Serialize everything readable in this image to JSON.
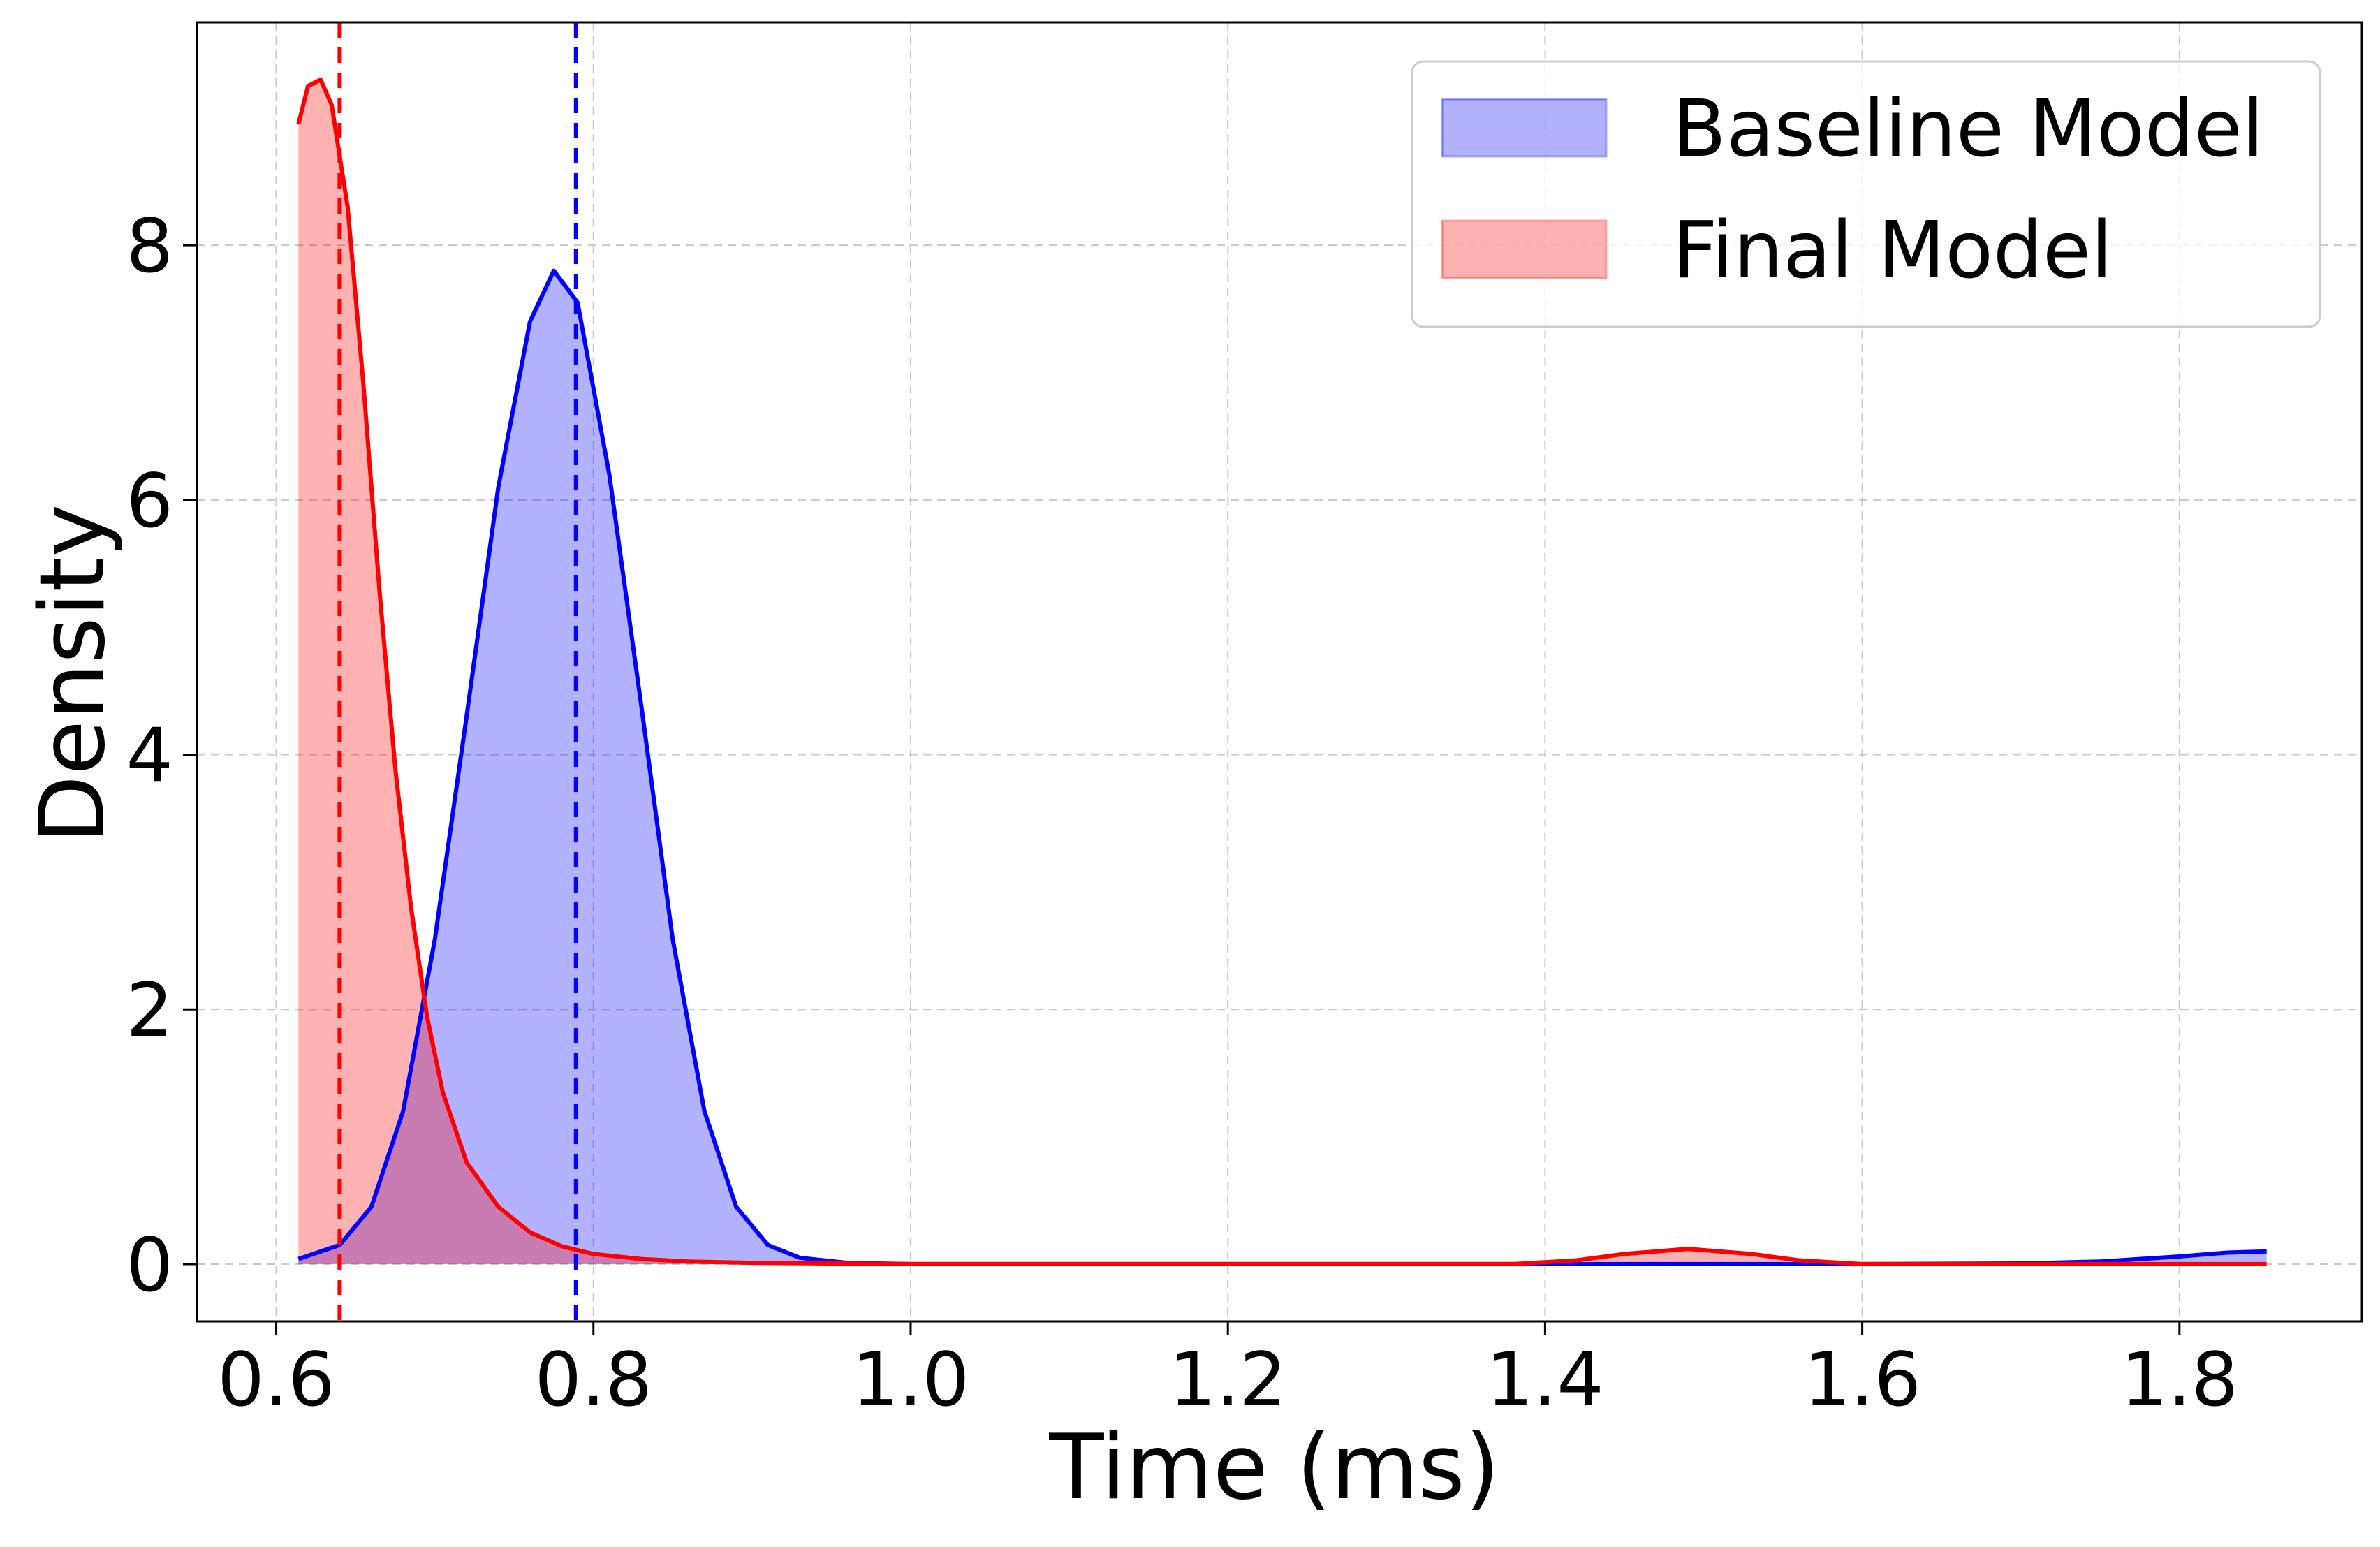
{
  "chart_data": {
    "type": "area",
    "xlabel": "Time (ms)",
    "ylabel": "Density",
    "xlim": [
      0.55,
      1.915
    ],
    "ylim": [
      -0.45,
      9.75
    ],
    "xticks": [
      0.6,
      0.8,
      1.0,
      1.2,
      1.4,
      1.6,
      1.8
    ],
    "xtick_labels": [
      "0.6",
      "0.8",
      "1.0",
      "1.2",
      "1.4",
      "1.6",
      "1.8"
    ],
    "yticks": [
      0,
      2,
      4,
      6,
      8
    ],
    "ytick_labels": [
      "0",
      "2",
      "4",
      "6",
      "8"
    ],
    "grid": true,
    "legend_position": "top-right",
    "series": [
      {
        "name": "Baseline Model",
        "color": "#0000ff",
        "fill": "#b0b4fb",
        "mean_line_x": 0.789,
        "x": [
          0.614,
          0.64,
          0.66,
          0.68,
          0.7,
          0.72,
          0.74,
          0.76,
          0.775,
          0.79,
          0.81,
          0.83,
          0.85,
          0.87,
          0.89,
          0.91,
          0.93,
          0.96,
          1.0,
          1.1,
          1.3,
          1.5,
          1.6,
          1.7,
          1.75,
          1.8,
          1.83,
          1.855
        ],
        "y": [
          0.04,
          0.15,
          0.45,
          1.2,
          2.55,
          4.3,
          6.1,
          7.4,
          7.8,
          7.55,
          6.2,
          4.4,
          2.55,
          1.2,
          0.45,
          0.15,
          0.05,
          0.01,
          0.0,
          0.0,
          0.0,
          0.0,
          0.0,
          0.005,
          0.02,
          0.06,
          0.09,
          0.1
        ]
      },
      {
        "name": "Final Model",
        "color": "#ff0000",
        "fill": "#ffb3b3",
        "mean_line_x": 0.64,
        "x": [
          0.614,
          0.62,
          0.628,
          0.635,
          0.645,
          0.655,
          0.665,
          0.675,
          0.685,
          0.695,
          0.705,
          0.72,
          0.74,
          0.76,
          0.78,
          0.8,
          0.83,
          0.86,
          0.9,
          1.0,
          1.2,
          1.38,
          1.42,
          1.45,
          1.49,
          1.53,
          1.56,
          1.6,
          1.7,
          1.855
        ],
        "y": [
          8.95,
          9.25,
          9.3,
          9.1,
          8.3,
          6.9,
          5.3,
          3.9,
          2.8,
          1.95,
          1.35,
          0.8,
          0.45,
          0.25,
          0.14,
          0.08,
          0.04,
          0.02,
          0.01,
          0.0,
          0.0,
          0.0,
          0.03,
          0.08,
          0.12,
          0.08,
          0.03,
          0.0,
          0.0,
          0.0
        ]
      }
    ]
  }
}
